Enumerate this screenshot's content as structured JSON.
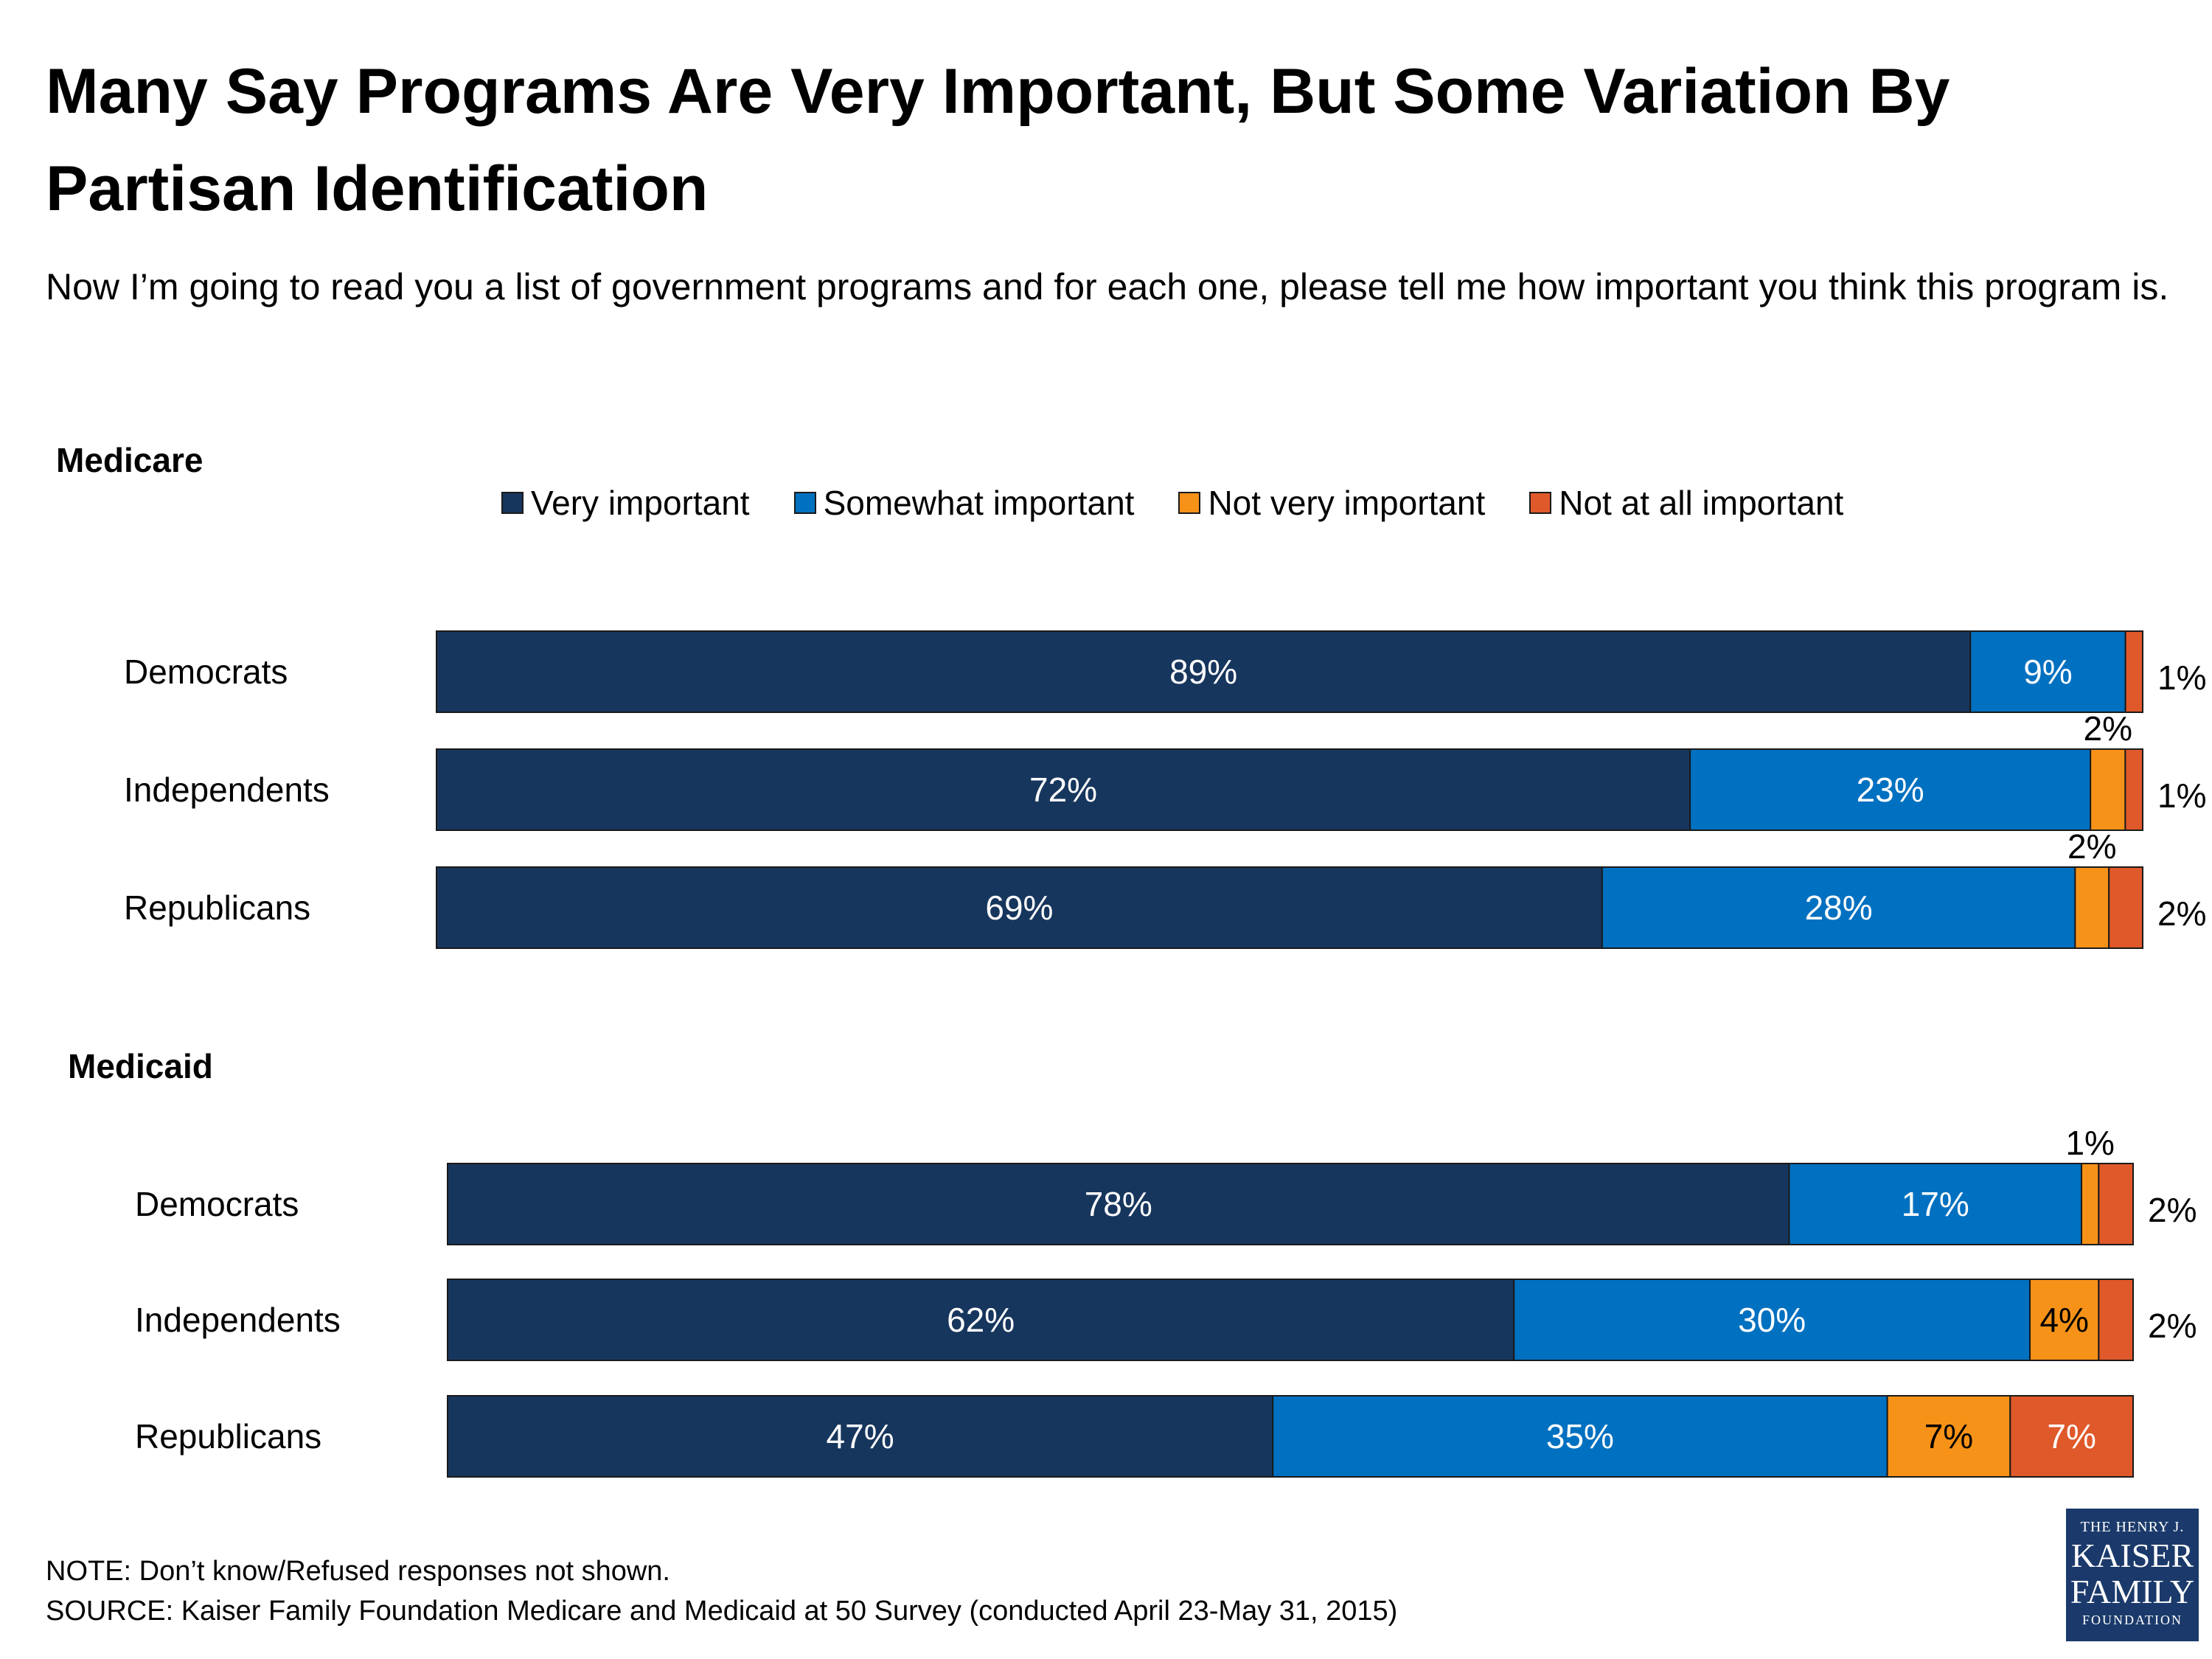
{
  "title": "Many Say Programs Are Very Important, But Some Variation By Partisan Identification",
  "subtitle": "Now I’m going to read you a list of government programs and for each one, please tell me how important you think this program is.",
  "legend": [
    {
      "label": "Very important",
      "color": "#17365d"
    },
    {
      "label": "Somewhat important",
      "color": "#0070c0"
    },
    {
      "label": "Not very important",
      "color": "#f79219"
    },
    {
      "label": "Not at all important",
      "color": "#e0592a"
    }
  ],
  "chart_data": [
    {
      "type": "bar",
      "orientation": "horizontal",
      "stacked": true,
      "title": "Medicare",
      "categories": [
        "Democrats",
        "Independents",
        "Republicans"
      ],
      "series": [
        {
          "name": "Very important",
          "values": [
            89,
            72,
            69
          ]
        },
        {
          "name": "Somewhat important",
          "values": [
            9,
            23,
            28
          ]
        },
        {
          "name": "Not very important",
          "values": [
            0,
            2,
            2
          ]
        },
        {
          "name": "Not at all important",
          "values": [
            1,
            1,
            2
          ]
        }
      ],
      "data_labels": [
        [
          "89%",
          "9%",
          "",
          "1%"
        ],
        [
          "72%",
          "23%",
          "2%",
          "1%"
        ],
        [
          "69%",
          "28%",
          "2%",
          "2%"
        ]
      ]
    },
    {
      "type": "bar",
      "orientation": "horizontal",
      "stacked": true,
      "title": "Medicaid",
      "categories": [
        "Democrats",
        "Independents",
        "Republicans"
      ],
      "series": [
        {
          "name": "Very important",
          "values": [
            78,
            62,
            47
          ]
        },
        {
          "name": "Somewhat important",
          "values": [
            17,
            30,
            35
          ]
        },
        {
          "name": "Not very important",
          "values": [
            1,
            4,
            7
          ]
        },
        {
          "name": "Not at all important",
          "values": [
            2,
            2,
            7
          ]
        }
      ],
      "data_labels": [
        [
          "78%",
          "17%",
          "1%",
          "2%"
        ],
        [
          "62%",
          "30%",
          "4%",
          "2%"
        ],
        [
          "47%",
          "35%",
          "7%",
          "7%"
        ]
      ]
    }
  ],
  "note": "NOTE: Don’t know/Refused responses not shown.",
  "source": "SOURCE: Kaiser Family Foundation Medicare and Medicaid at 50 Survey (conducted April 23-May 31, 2015)",
  "logo": {
    "line1": "THE HENRY J.",
    "line2": "KAISER",
    "line3": "FAMILY",
    "line4": "FOUNDATION"
  }
}
